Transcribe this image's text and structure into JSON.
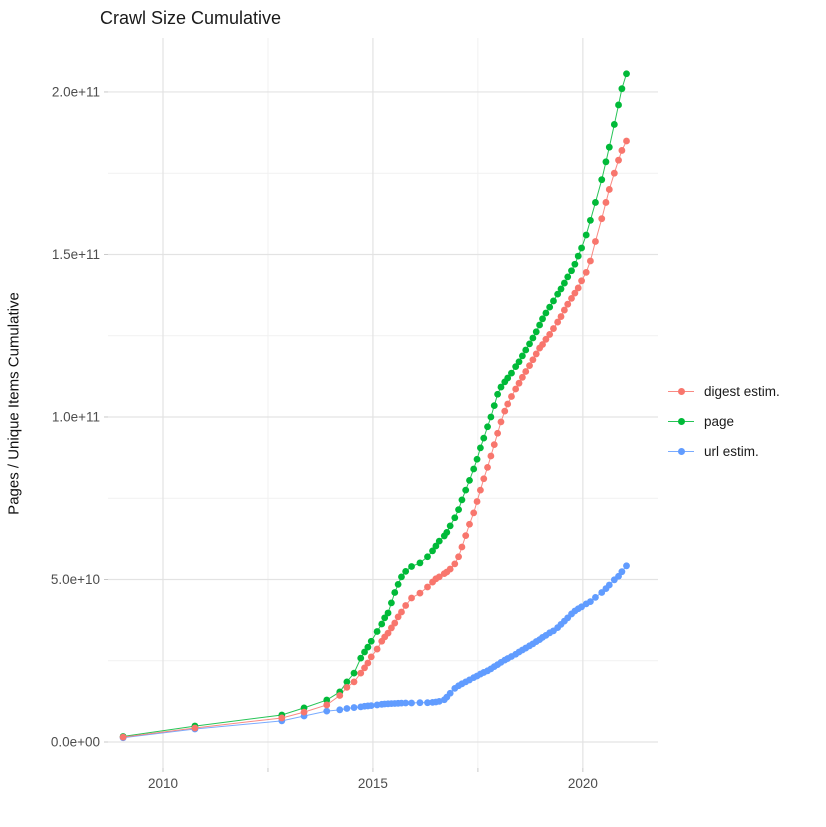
{
  "title": "Crawl Size Cumulative",
  "y_axis_title": "Pages / Unique Items Cumulative",
  "legend": {
    "items": [
      {
        "label": "digest estim.",
        "color": "#F8766D"
      },
      {
        "label": "page",
        "color": "#00BA38"
      },
      {
        "label": "url estim.",
        "color": "#619CFF"
      }
    ]
  },
  "axes": {
    "x": {
      "major_ticks": [
        {
          "value": 2010,
          "label": "2010"
        },
        {
          "value": 2015,
          "label": "2015"
        },
        {
          "value": 2020,
          "label": "2020"
        }
      ],
      "minor_ticks": [
        2012.5,
        2017.5
      ],
      "range": [
        2008.69,
        2021.79
      ]
    },
    "y": {
      "major_ticks": [
        {
          "value": 0,
          "label": "0.0e+00"
        },
        {
          "value": 50000000000.0,
          "label": "5.0e+10"
        },
        {
          "value": 100000000000.0,
          "label": "1.0e+11"
        },
        {
          "value": 150000000000.0,
          "label": "1.5e+11"
        },
        {
          "value": 200000000000.0,
          "label": "2.0e+11"
        }
      ],
      "minor_ticks": [
        25000000000.0,
        75000000000.0,
        125000000000.0,
        175000000000.0
      ],
      "range": [
        -8000000000.0,
        216600000000.0
      ]
    }
  },
  "colors": {
    "grid_major": "#e3e3e3",
    "grid_minor": "#f1f1f1",
    "tick": "#c8c8c8",
    "axis_text": "#4d4d4d"
  },
  "chart_data": {
    "type": "scatter",
    "title": "Crawl Size Cumulative",
    "xlabel": "",
    "ylabel": "Pages / Unique Items Cumulative",
    "legend_position": "right",
    "grid": true,
    "xlim": [
      2008.69,
      2021.79
    ],
    "ylim": [
      -8000000000.0,
      216600000000.0
    ],
    "x": [
      2009.05,
      2010.76,
      2012.83,
      2013.36,
      2013.9,
      2014.21,
      2014.38,
      2014.55,
      2014.71,
      2014.8,
      2014.88,
      2014.96,
      2015.1,
      2015.21,
      2015.28,
      2015.36,
      2015.44,
      2015.52,
      2015.6,
      2015.68,
      2015.78,
      2015.92,
      2016.12,
      2016.3,
      2016.42,
      2016.5,
      2016.58,
      2016.7,
      2016.76,
      2016.84,
      2016.95,
      2017.04,
      2017.12,
      2017.21,
      2017.3,
      2017.4,
      2017.48,
      2017.56,
      2017.64,
      2017.73,
      2017.81,
      2017.89,
      2017.97,
      2018.05,
      2018.14,
      2018.21,
      2018.3,
      2018.4,
      2018.48,
      2018.56,
      2018.64,
      2018.73,
      2018.81,
      2018.89,
      2018.97,
      2019.04,
      2019.12,
      2019.21,
      2019.3,
      2019.4,
      2019.48,
      2019.56,
      2019.64,
      2019.73,
      2019.81,
      2019.89,
      2019.97,
      2020.08,
      2020.18,
      2020.3,
      2020.45,
      2020.55,
      2020.63,
      2020.75,
      2020.85,
      2020.93,
      2021.04
    ],
    "series": [
      {
        "name": "digest estim.",
        "color": "#F8766D",
        "values": [
          1500000000.0,
          4300000000.0,
          7400000000.0,
          9200000000.0,
          11400000000.0,
          14300000000.0,
          16800000000.0,
          18500000000.0,
          21200000000.0,
          22800000000.0,
          24300000000.0,
          26200000000.0,
          28600000000.0,
          31000000000.0,
          32300000000.0,
          33500000000.0,
          35100000000.0,
          36600000000.0,
          38500000000.0,
          40000000000.0,
          42000000000.0,
          44300000000.0,
          45800000000.0,
          47700000000.0,
          49200000000.0,
          50200000000.0,
          50800000000.0,
          51800000000.0,
          52300000000.0,
          53200000000.0,
          54800000000.0,
          57000000000.0,
          60000000000.0,
          63500000000.0,
          67000000000.0,
          70500000000.0,
          74000000000.0,
          77500000000.0,
          81000000000.0,
          84500000000.0,
          88000000000.0,
          91500000000.0,
          95000000000.0,
          98500000000.0,
          101800000000.0,
          104000000000.0,
          106300000000.0,
          108600000000.0,
          110400000000.0,
          112200000000.0,
          114000000000.0,
          115800000000.0,
          117600000000.0,
          119400000000.0,
          121200000000.0,
          122300000000.0,
          123900000000.0,
          125400000000.0,
          127200000000.0,
          129200000000.0,
          130900000000.0,
          132900000000.0,
          134700000000.0,
          136500000000.0,
          138100000000.0,
          139700000000.0,
          141900000000.0,
          144500000000.0,
          148000000000.0,
          154000000000.0,
          161000000000.0,
          166000000000.0,
          170000000000.0,
          175000000000.0,
          179000000000.0,
          182000000000.0,
          184900000000.0
        ]
      },
      {
        "name": "page",
        "color": "#00BA38",
        "values": [
          1700000000.0,
          4900000000.0,
          8300000000.0,
          10500000000.0,
          12900000000.0,
          15400000000.0,
          18500000000.0,
          21200000000.0,
          25800000000.0,
          27700000000.0,
          29200000000.0,
          31000000000.0,
          34000000000.0,
          36300000000.0,
          38200000000.0,
          39700000000.0,
          42800000000.0,
          46000000000.0,
          48500000000.0,
          50800000000.0,
          52500000000.0,
          54000000000.0,
          55100000000.0,
          57000000000.0,
          58800000000.0,
          60300000000.0,
          61800000000.0,
          63400000000.0,
          64500000000.0,
          66500000000.0,
          69000000000.0,
          71500000000.0,
          74500000000.0,
          77500000000.0,
          80500000000.0,
          84000000000.0,
          87000000000.0,
          90500000000.0,
          93500000000.0,
          97000000000.0,
          100000000000.0,
          103500000000.0,
          107000000000.0,
          109200000000.0,
          110800000000.0,
          112000000000.0,
          113500000000.0,
          115500000000.0,
          117000000000.0,
          118800000000.0,
          120600000000.0,
          122500000000.0,
          124300000000.0,
          126200000000.0,
          128300000000.0,
          130200000000.0,
          132000000000.0,
          133800000000.0,
          135700000000.0,
          137800000000.0,
          139400000000.0,
          141200000000.0,
          143100000000.0,
          145000000000.0,
          147000000000.0,
          149500000000.0,
          152000000000.0,
          156000000000.0,
          160500000000.0,
          166000000000.0,
          173000000000.0,
          178500000000.0,
          183000000000.0,
          190000000000.0,
          196000000000.0,
          201000000000.0,
          205600000000.0
        ]
      },
      {
        "name": "url estim.",
        "color": "#619CFF",
        "values": [
          1300000000.0,
          4000000000.0,
          6500000000.0,
          8000000000.0,
          9500000000.0,
          9900000000.0,
          10300000000.0,
          10600000000.0,
          10800000000.0,
          11000000000.0,
          11100000000.0,
          11200000000.0,
          11400000000.0,
          11600000000.0,
          11700000000.0,
          11750000000.0,
          11800000000.0,
          11850000000.0,
          11900000000.0,
          11950000000.0,
          12000000000.0,
          12000000000.0,
          12100000000.0,
          12100000000.0,
          12200000000.0,
          12300000000.0,
          12500000000.0,
          13000000000.0,
          13800000000.0,
          15000000000.0,
          16500000000.0,
          17300000000.0,
          17900000000.0,
          18500000000.0,
          19100000000.0,
          19800000000.0,
          20300000000.0,
          20900000000.0,
          21400000000.0,
          21900000000.0,
          22500000000.0,
          23200000000.0,
          23800000000.0,
          24500000000.0,
          25200000000.0,
          25700000000.0,
          26300000000.0,
          27000000000.0,
          27700000000.0,
          28300000000.0,
          28900000000.0,
          29600000000.0,
          30200000000.0,
          30900000000.0,
          31500000000.0,
          32200000000.0,
          32800000000.0,
          33600000000.0,
          34200000000.0,
          35200000000.0,
          36200000000.0,
          37200000000.0,
          38200000000.0,
          39400000000.0,
          40300000000.0,
          41000000000.0,
          41600000000.0,
          42500000000.0,
          43200000000.0,
          44500000000.0,
          46000000000.0,
          47200000000.0,
          48300000000.0,
          49900000000.0,
          51000000000.0,
          52400000000.0,
          54200000000.0
        ]
      }
    ]
  }
}
